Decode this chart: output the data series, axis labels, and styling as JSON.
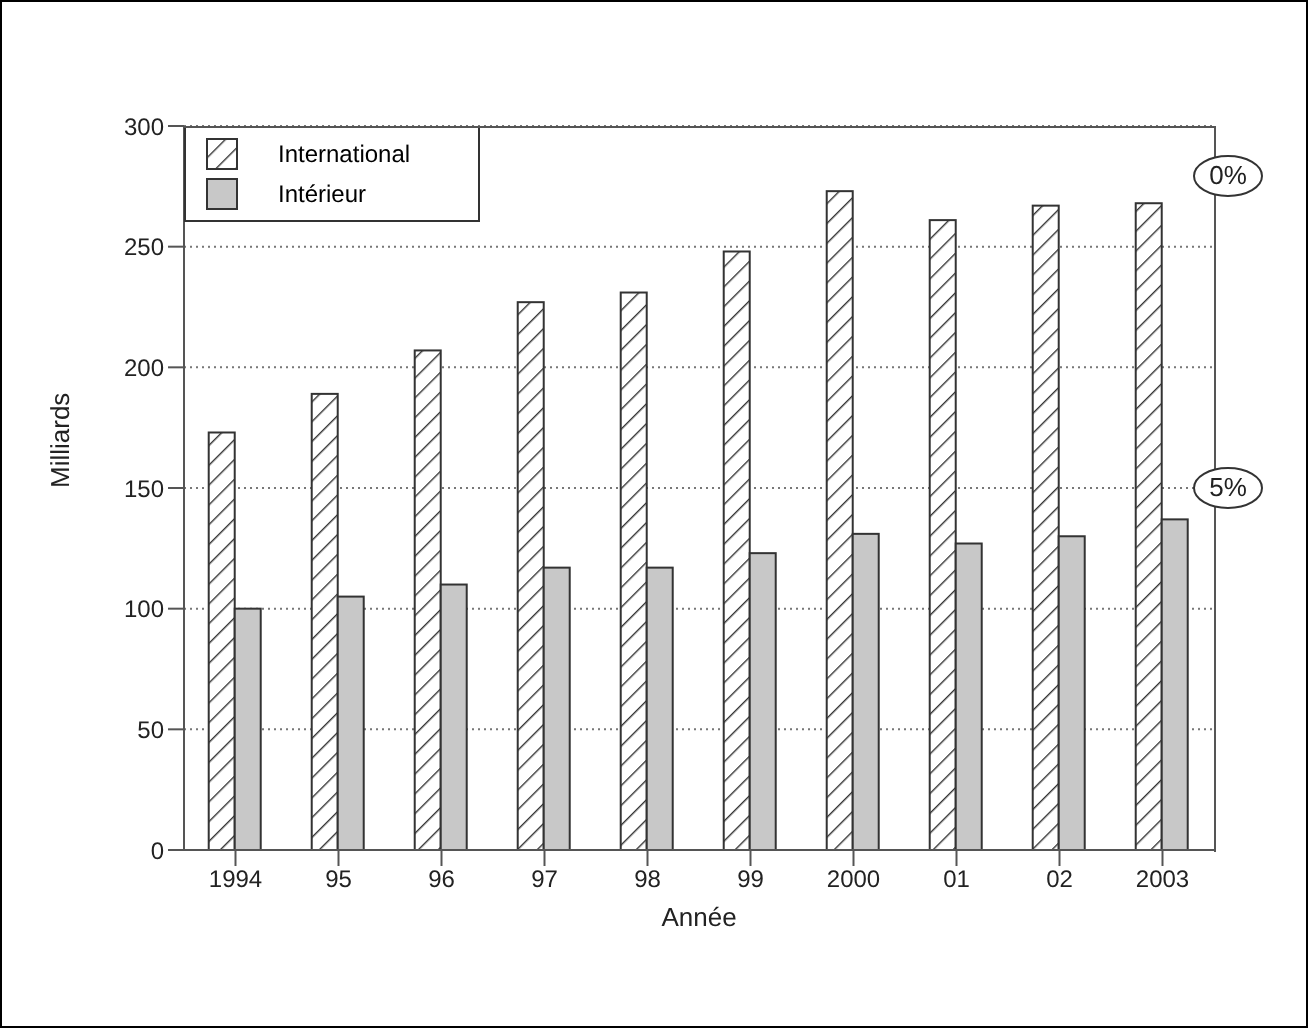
{
  "chart_data": {
    "type": "bar",
    "xlabel": "Année",
    "ylabel": "Milliards",
    "categories": [
      "1994",
      "95",
      "96",
      "97",
      "98",
      "99",
      "2000",
      "01",
      "02",
      "2003"
    ],
    "series": [
      {
        "name": "International",
        "color": "#ffffff",
        "values": [
          173,
          189,
          207,
          227,
          231,
          248,
          273,
          261,
          267,
          268
        ]
      },
      {
        "name": "Intérieur",
        "color": "#c8c8c8",
        "values": [
          100,
          105,
          110,
          117,
          117,
          123,
          131,
          127,
          130,
          137
        ]
      }
    ],
    "ylim": [
      0,
      300
    ],
    "yticks": [
      0,
      50,
      100,
      150,
      200,
      250,
      300
    ],
    "grid": "y",
    "legend": "top left",
    "annotations": [
      "0%",
      "5%"
    ]
  }
}
